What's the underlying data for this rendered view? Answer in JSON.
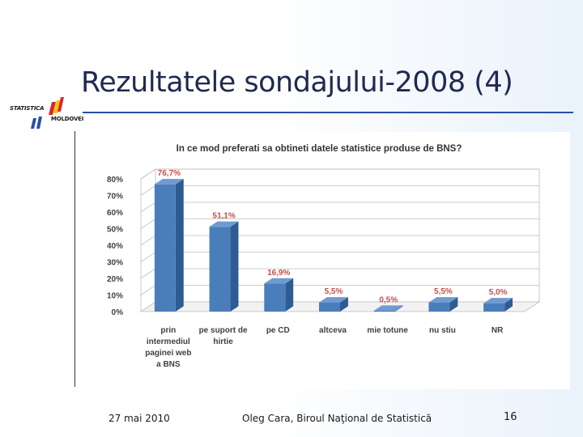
{
  "slide": {
    "title": "Rezultatele sondajului-2008 (4)",
    "logo_text_1": "STATISTICA",
    "logo_text_2": "MOLDOVEI"
  },
  "footer": {
    "date": "27 mai 2010",
    "author": "Oleg Cara, Biroul Naţional de Statistică",
    "page_number": "16"
  },
  "colors": {
    "title": "#1f2a52",
    "rule": "#2b4fa3",
    "bar_front": "#4a7ebb",
    "bar_side": "#2e5b92",
    "bar_top": "#6f9bd1",
    "data_label": "#c0504d",
    "logo_blue": "#2b4fa3",
    "logo_red": "#d8262e",
    "logo_yellow": "#f5c400"
  },
  "chart_data": {
    "type": "bar",
    "title": "In ce mod preferati sa obtineti datele statistice produse de BNS?",
    "categories": [
      [
        "prin",
        "intermediul",
        "paginei web",
        "a BNS"
      ],
      [
        "pe suport de",
        "hirtie"
      ],
      [
        "pe CD"
      ],
      [
        "altceva"
      ],
      [
        "mie totune"
      ],
      [
        "nu stiu"
      ],
      [
        "NR"
      ]
    ],
    "values": [
      76.7,
      51.1,
      16.9,
      5.5,
      0.5,
      5.5,
      5.0
    ],
    "data_labels": [
      "76,7%",
      "51,1%",
      "16,9%",
      "5,5%",
      "0,5%",
      "5,5%",
      "5,0%"
    ],
    "ylim": [
      0,
      80
    ],
    "y_ticks": [
      0,
      10,
      20,
      30,
      40,
      50,
      60,
      70,
      80
    ],
    "y_tick_labels": [
      "0%",
      "10%",
      "20%",
      "30%",
      "40%",
      "50%",
      "60%",
      "70%",
      "80%"
    ],
    "xlabel": "",
    "ylabel": "",
    "grid": true,
    "legend": "none",
    "style": "3d-bar"
  }
}
